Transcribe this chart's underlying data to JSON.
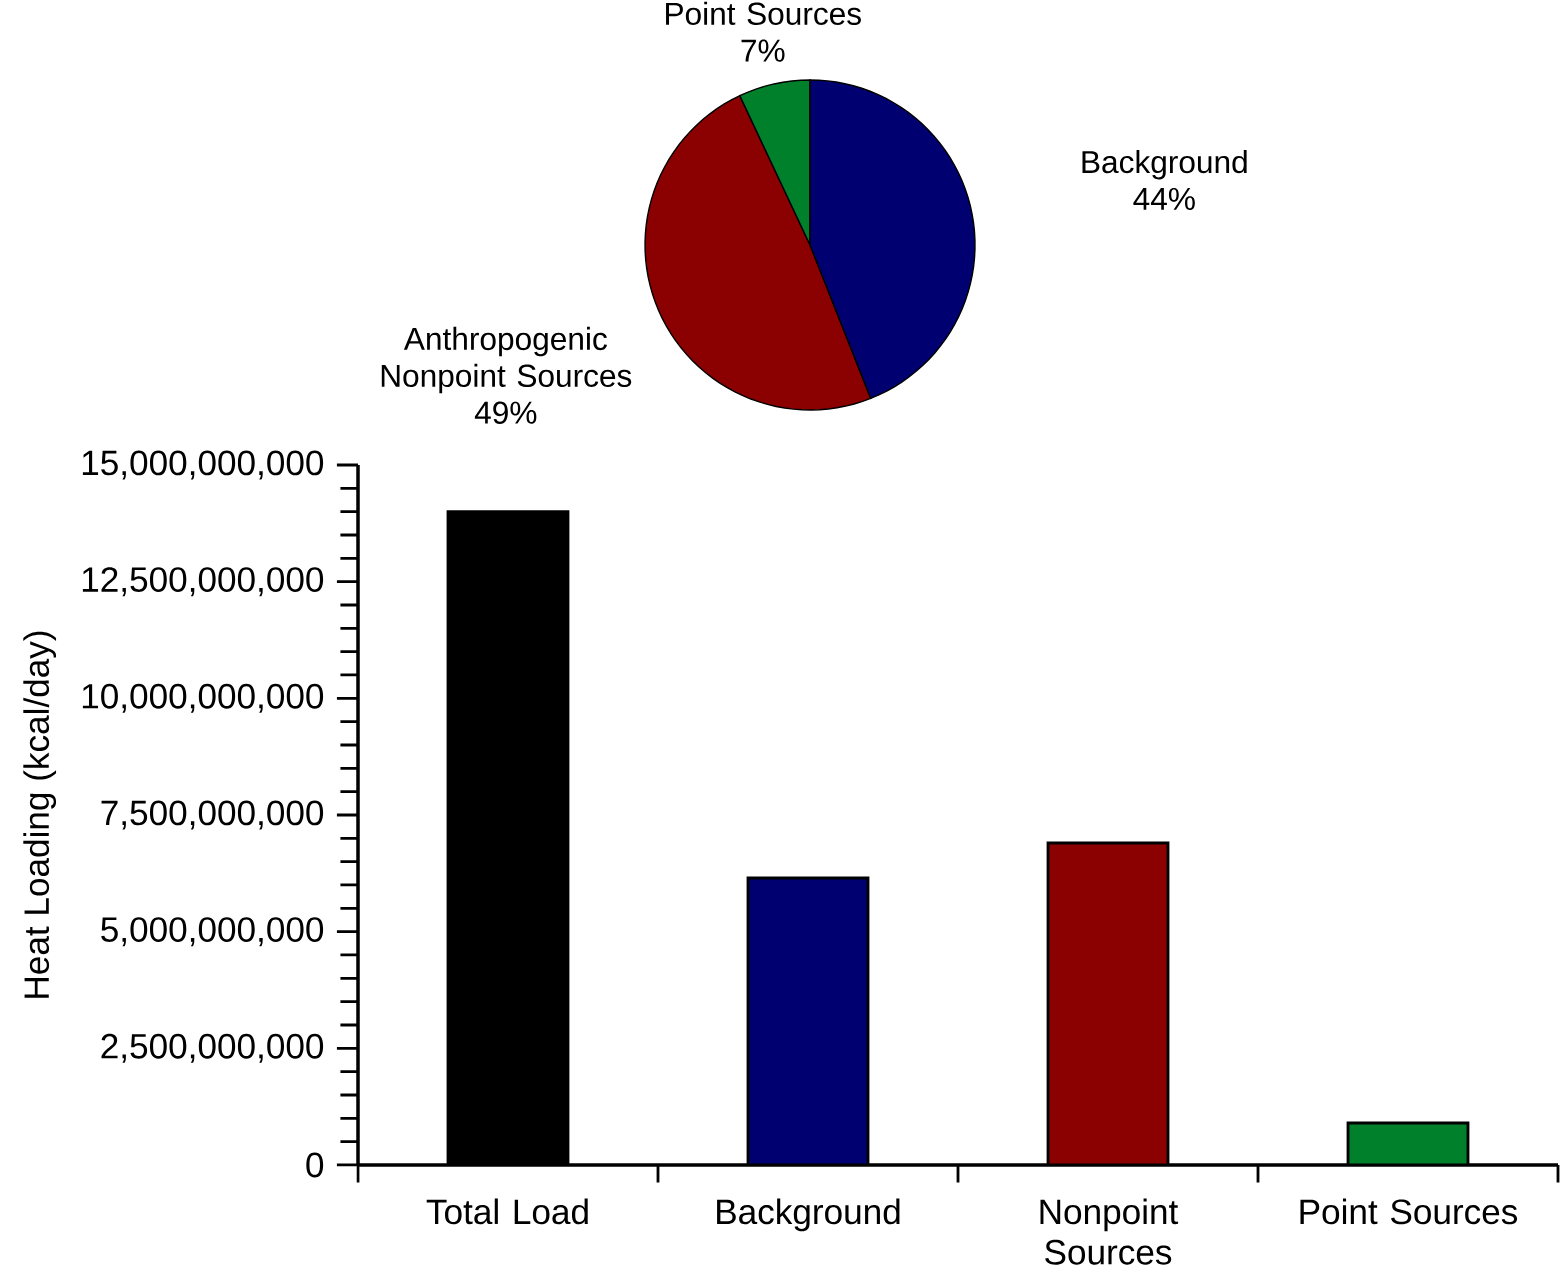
{
  "chart_data": [
    {
      "type": "pie",
      "categories": [
        "Anthropogenic Nonpoint Sources",
        "Point Sources",
        "Background"
      ],
      "values": [
        49,
        7,
        44
      ],
      "value_labels": [
        "49%",
        "7%",
        "44%"
      ],
      "colors": [
        "#8b0000",
        "#00802a",
        "#000070"
      ]
    },
    {
      "type": "bar",
      "ylabel": "Heat Loading (kcal/day)",
      "categories": [
        "Total Load",
        "Background",
        "Nonpoint Sources",
        "Point Sources"
      ],
      "values": [
        14000000000,
        6150000000,
        6900000000,
        900000000
      ],
      "colors": [
        "#000000",
        "#000070",
        "#8b0000",
        "#00802a"
      ],
      "ylim": [
        0,
        15000000000
      ],
      "yticks": [
        {
          "value": 0,
          "label": "0"
        },
        {
          "value": 2500000000,
          "label": "2,500,000,000"
        },
        {
          "value": 5000000000,
          "label": "5,000,000,000"
        },
        {
          "value": 7500000000,
          "label": "7,500,000,000"
        },
        {
          "value": 10000000000,
          "label": "10,000,000,000"
        },
        {
          "value": 12500000000,
          "label": "12,500,000,000"
        },
        {
          "value": 15000000000,
          "label": "15,000,000,000"
        }
      ]
    }
  ]
}
